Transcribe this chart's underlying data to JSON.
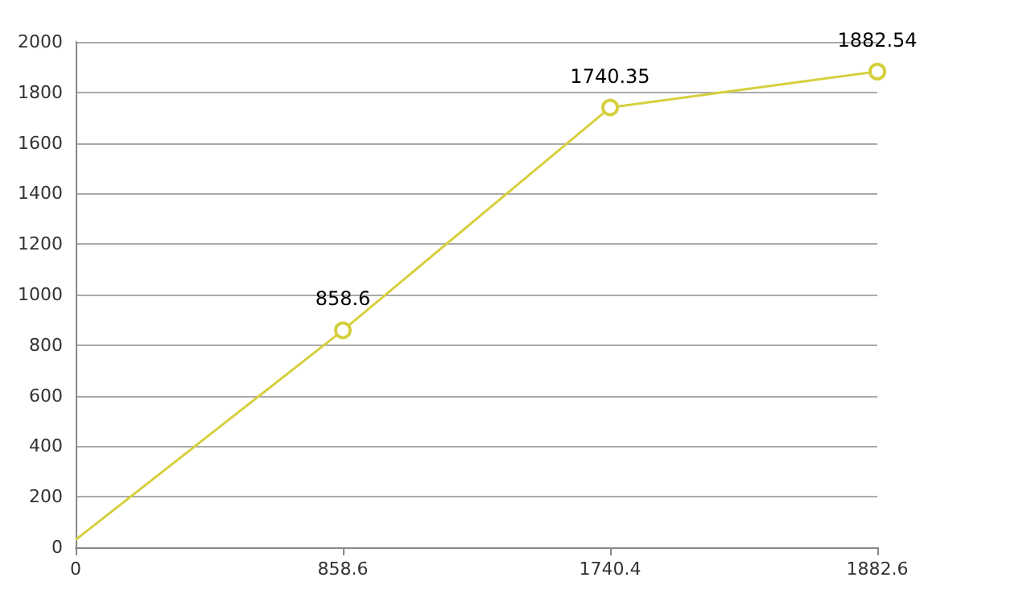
{
  "chart_data": {
    "type": "line",
    "categories": [
      "0",
      "858.6",
      "1740.4",
      "1882.6"
    ],
    "series": [
      {
        "color": "#d6cf3c",
        "values": [
          30,
          858.6,
          1740.35,
          1882.54
        ],
        "value_labels": [
          null,
          "858.6",
          "1740.35",
          "1882.54"
        ]
      }
    ],
    "ylim": [
      0,
      2000
    ],
    "yticks": [
      0,
      200,
      400,
      600,
      800,
      1000,
      1200,
      1400,
      1600,
      1800,
      2000
    ],
    "grid": "y",
    "marker": "circle",
    "line_style": "solid"
  }
}
